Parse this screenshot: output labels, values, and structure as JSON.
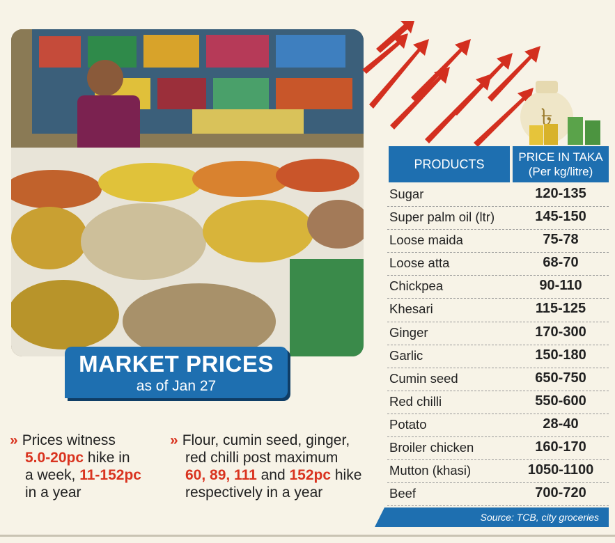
{
  "badge": {
    "title": "MARKET PRICES",
    "subtitle": "as of Jan 27"
  },
  "bullets": [
    {
      "parts": [
        "Prices witness",
        "5.0-20pc",
        " hike in",
        "a week, ",
        "11-152pc",
        "in a year"
      ]
    },
    {
      "parts": [
        "Flour, cumin seed, ginger,",
        "red chilli post maximum",
        "60, 89, 111",
        " and ",
        "152pc",
        " hike",
        "respectively in a year"
      ]
    }
  ],
  "table": {
    "header_products": "PRODUCTS",
    "header_price_line1": "PRICE IN TAKA",
    "header_price_line2": "(Per kg/litre)",
    "rows": [
      {
        "name": "Sugar",
        "price": "120-135"
      },
      {
        "name": "Super palm oil (ltr)",
        "price": "145-150"
      },
      {
        "name": "Loose maida",
        "price": "75-78"
      },
      {
        "name": "Loose atta",
        "price": "68-70"
      },
      {
        "name": "Chickpea",
        "price": "90-110"
      },
      {
        "name": "Khesari",
        "price": "115-125"
      },
      {
        "name": "Ginger",
        "price": "170-300"
      },
      {
        "name": "Garlic",
        "price": "150-180"
      },
      {
        "name": "Cumin seed",
        "price": "650-750"
      },
      {
        "name": "Red chilli",
        "price": "550-600"
      },
      {
        "name": "Potato",
        "price": "28-40"
      },
      {
        "name": "Broiler chicken",
        "price": "160-170"
      },
      {
        "name": "Mutton (khasi)",
        "price": "1050-1100"
      },
      {
        "name": "Beef",
        "price": "700-720"
      }
    ]
  },
  "source": "Source: TCB, city groceries",
  "colors": {
    "accent_blue": "#1e6fb0",
    "highlight_red": "#d9331f",
    "background": "#f7f3e7"
  },
  "icons": {
    "bullet": "double-chevron-right-icon",
    "money_bag": "taka-money-bag-icon",
    "arrows": "rising-arrows-decoration"
  }
}
